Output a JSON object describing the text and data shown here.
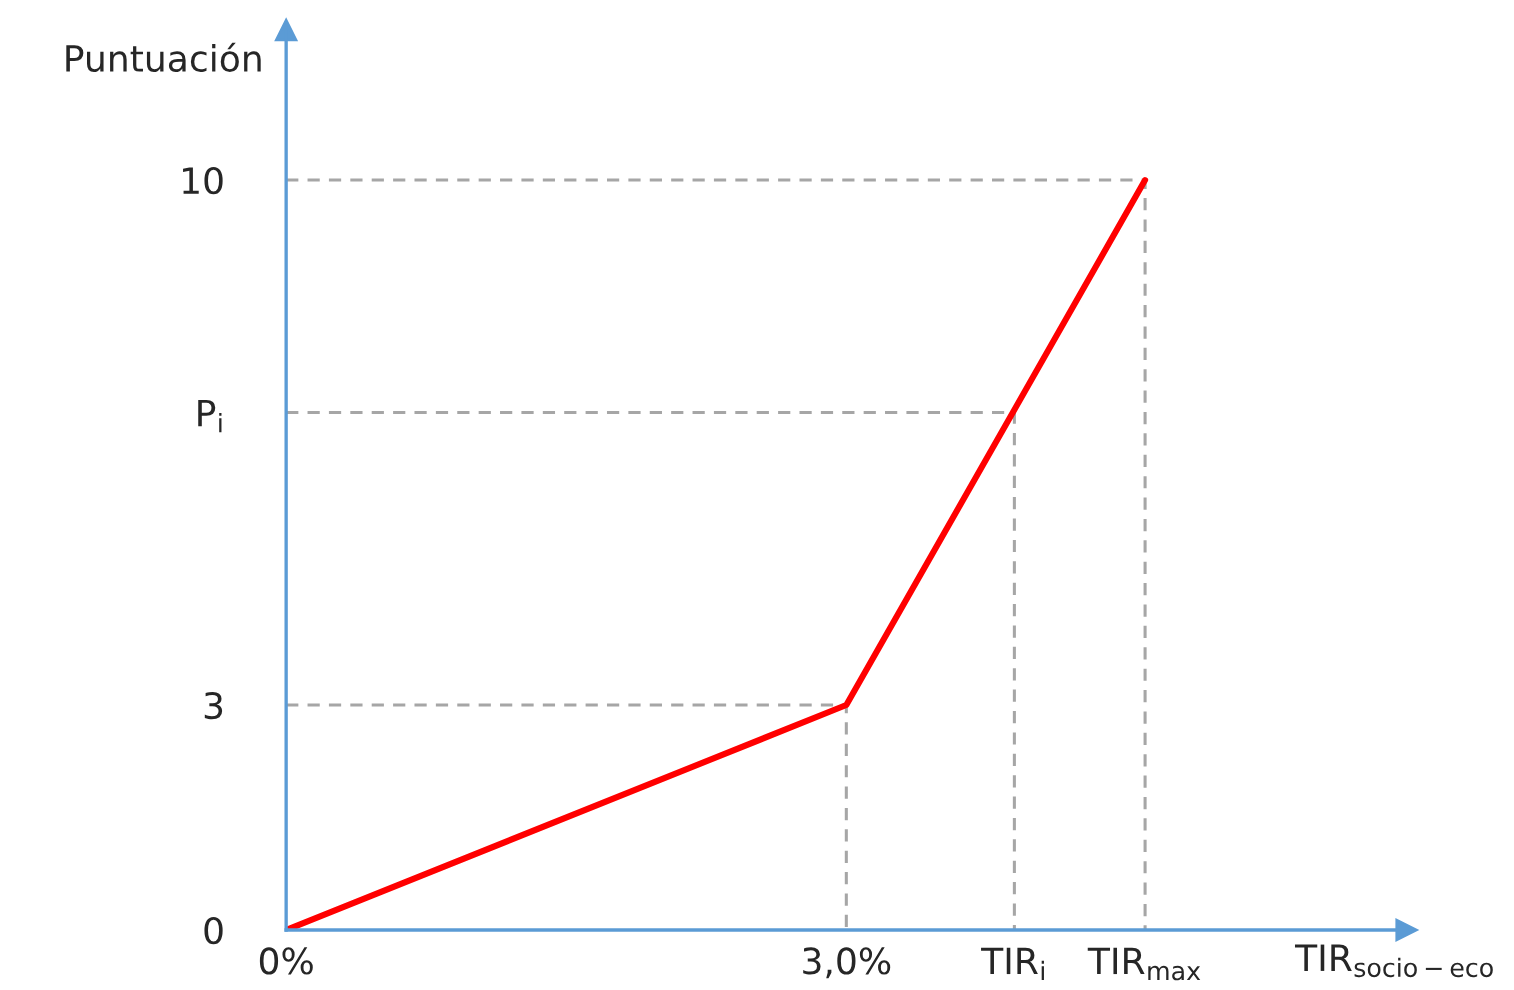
{
  "chart_data": {
    "type": "line",
    "xlabel": "TIR$_{socio−eco}$",
    "ylabel": "Puntuación",
    "xlim": [
      0,
      6
    ],
    "ylim": [
      0,
      12
    ],
    "xticks": [
      {
        "value": 0,
        "label": "0%"
      },
      {
        "value": 3,
        "label": "3,0%"
      },
      {
        "value": 3.9,
        "label": "TIR$_{i}$"
      },
      {
        "value": 4.6,
        "label": "TIR$_{max}$"
      }
    ],
    "yticks": [
      0,
      3,
      {
        "value": 6.9,
        "label": "P$_{i}$"
      },
      10
    ],
    "series": [
      {
        "color": "#a6a6a6",
        "line_style": "dashed",
        "x": [
          0,
          3,
          3
        ],
        "values": [
          3,
          3,
          0
        ]
      },
      {
        "color": "#a6a6a6",
        "line_style": "dashed",
        "x": [
          0,
          3.9,
          3.9
        ],
        "values": [
          6.9,
          6.9,
          0
        ]
      },
      {
        "color": "#a6a6a6",
        "line_style": "dashed",
        "x": [
          0,
          4.6,
          4.6
        ],
        "values": [
          10,
          10,
          0
        ]
      },
      {
        "color": "#ff0000",
        "line_style": "solid",
        "x": [
          0,
          3,
          4.6
        ],
        "values": [
          0,
          3,
          10
        ]
      }
    ]
  }
}
